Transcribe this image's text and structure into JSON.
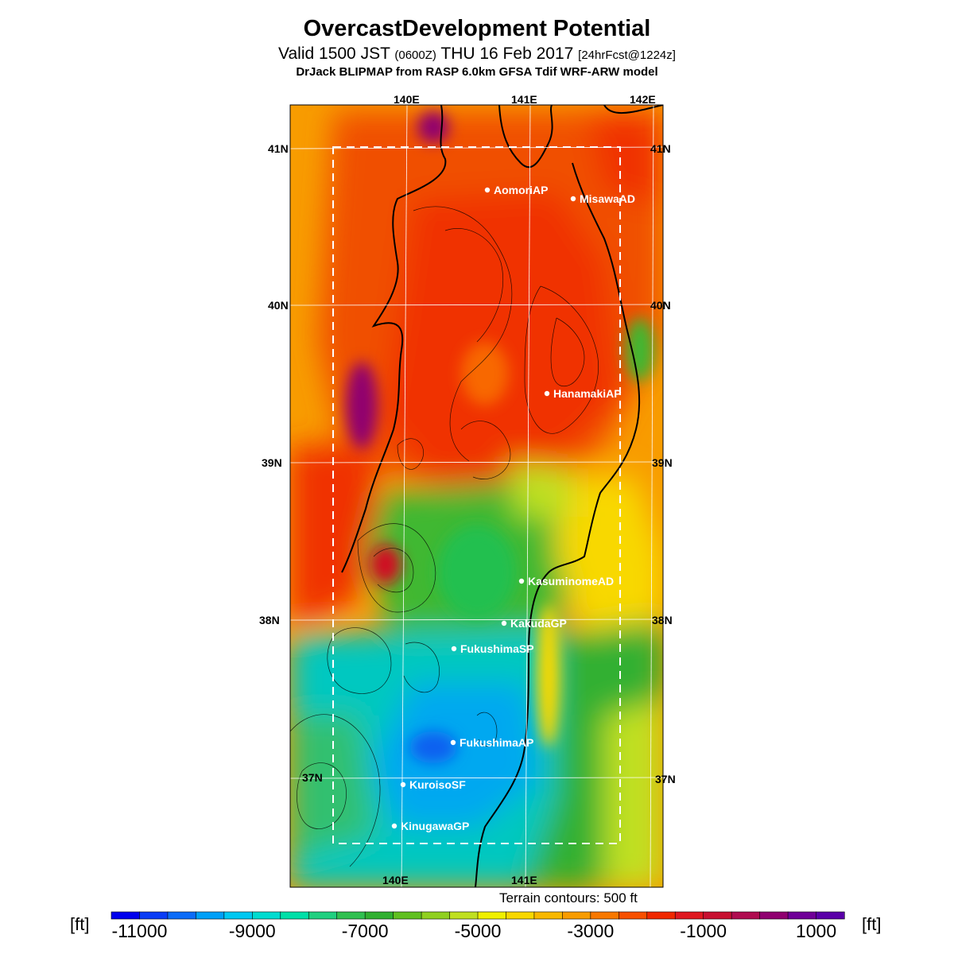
{
  "header": {
    "title": "OvercastDevelopment Potential",
    "valid_prefix": "Valid 1500 JST",
    "valid_zulu": "(0600Z)",
    "valid_date": "THU 16 Feb 2017",
    "forecast": "[24hrFcst@1224z]",
    "subtitle": "DrJack BLIPMAP from RASP 6.0km GFSA Tdif WRF-ARW model"
  },
  "map": {
    "lon_labels": [
      "140E",
      "141E",
      "142E"
    ],
    "lat_labels": [
      "41N",
      "40N",
      "39N",
      "38N",
      "37N"
    ],
    "stations": [
      {
        "name": "AomoriAP"
      },
      {
        "name": "MisawaAD"
      },
      {
        "name": "HanamakiAP"
      },
      {
        "name": "KasuminomeAD"
      },
      {
        "name": "KakudaGP"
      },
      {
        "name": "FukushimaSP"
      },
      {
        "name": "FukushimaAP"
      },
      {
        "name": "KuroisoSF"
      },
      {
        "name": "KinugawaGP"
      }
    ]
  },
  "legend": {
    "unit_left": "[ft]",
    "unit_right": "[ft]",
    "terrain_note": "Terrain contours: 500 ft",
    "tick_labels": [
      "-11000",
      "-9000",
      "-7000",
      "-5000",
      "-3000",
      "-1000",
      "1000"
    ],
    "colors": [
      "#0000ee",
      "#0a3cf6",
      "#0c6cf8",
      "#00a0f8",
      "#00c8f2",
      "#00dcd0",
      "#00e0a8",
      "#20d080",
      "#30c050",
      "#30b030",
      "#60c020",
      "#90d020",
      "#c0e020",
      "#f0f000",
      "#f8d800",
      "#f8b800",
      "#f89c00",
      "#f87800",
      "#f85000",
      "#f02800",
      "#e01820",
      "#c81030",
      "#b00c50",
      "#900070",
      "#700098",
      "#5a00a8"
    ]
  },
  "chart_data": {
    "type": "heatmap",
    "title": "OvercastDevelopment Potential",
    "unit": "ft",
    "scale_min": -11000,
    "scale_max": 2000,
    "scale_step": 500,
    "lon_range": [
      "140E",
      "142E"
    ],
    "lat_range": [
      "37N",
      "41N"
    ]
  }
}
